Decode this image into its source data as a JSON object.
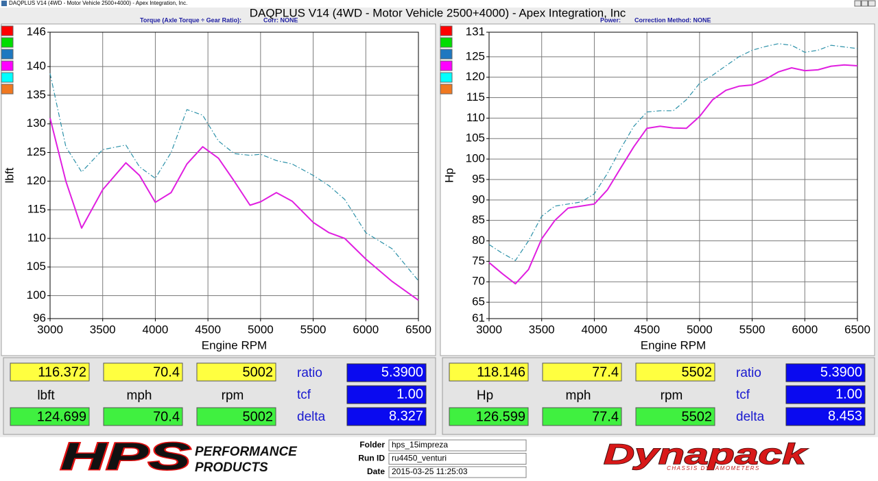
{
  "window": {
    "caption": "DAQPLUS V14 (4WD - Motor Vehicle 2500+4000) - Apex Integration, Inc.",
    "title": "DAQPLUS V14 (4WD - Motor Vehicle 2500+4000) - Apex Integration, Inc"
  },
  "chart_data": [
    {
      "type": "line",
      "header": "Torque (Axle Torque ÷ Gear Ratio):",
      "correction": "Corr: NONE",
      "x_label": "Engine RPM",
      "y_label": "lbft",
      "x": [
        3000,
        3150,
        3300,
        3500,
        3720,
        3850,
        4000,
        4150,
        4300,
        4450,
        4600,
        4750,
        4900,
        5000,
        5150,
        5300,
        5500,
        5650,
        5800,
        6000,
        6250,
        6500
      ],
      "xlim": [
        3000,
        6500
      ],
      "xticks": [
        3000,
        3500,
        4000,
        4500,
        5000,
        5500,
        6000,
        6500
      ],
      "ylim": [
        96,
        146
      ],
      "yticks": [
        96,
        100,
        105,
        110,
        115,
        120,
        125,
        130,
        135,
        140,
        146
      ],
      "grid": true,
      "legend_swatches": [
        "#ff0000",
        "#00dd00",
        "#1e78c0",
        "#ff00ff",
        "#00ffff",
        "#f07820"
      ],
      "series": [
        {
          "color": "#e01ee0",
          "style": "solid",
          "values": [
            131,
            120,
            111.8,
            118.5,
            123.2,
            121,
            116.3,
            118,
            123,
            126,
            124,
            120,
            115.8,
            116.4,
            118,
            116.5,
            112.8,
            111,
            110,
            106.4,
            102.5,
            99.2
          ]
        },
        {
          "color": "#2a90a8",
          "style": "dash-dot",
          "values": [
            138.8,
            126,
            121.6,
            125.5,
            126.3,
            122.5,
            120.5,
            125,
            132.5,
            131.5,
            127,
            124.8,
            124.5,
            124.7,
            123.6,
            123,
            121,
            119.2,
            116.8,
            111,
            108.2,
            102.6
          ]
        }
      ]
    },
    {
      "type": "line",
      "header": "Power:",
      "correction": "Correction Method: NONE",
      "x_label": "Engine RPM",
      "y_label": "Hp",
      "x": [
        3000,
        3125,
        3250,
        3375,
        3500,
        3625,
        3750,
        3875,
        4000,
        4125,
        4250,
        4375,
        4500,
        4625,
        4750,
        4875,
        5000,
        5125,
        5250,
        5375,
        5500,
        5625,
        5750,
        5875,
        6000,
        6125,
        6250,
        6375,
        6500
      ],
      "xlim": [
        3000,
        6500
      ],
      "xticks": [
        3000,
        3500,
        4000,
        4500,
        5000,
        5500,
        6000,
        6500
      ],
      "ylim": [
        61,
        131
      ],
      "yticks": [
        61,
        65,
        70,
        75,
        80,
        85,
        90,
        95,
        100,
        105,
        110,
        115,
        120,
        125,
        131
      ],
      "grid": true,
      "legend_swatches": [
        "#ff0000",
        "#00dd00",
        "#1e78c0",
        "#ff00ff",
        "#00ffff",
        "#f07820"
      ],
      "series": [
        {
          "color": "#e01ee0",
          "style": "solid",
          "values": [
            74.7,
            72,
            69.5,
            73,
            80.5,
            85,
            88,
            88.5,
            89,
            92.5,
            97.8,
            103,
            107.5,
            108,
            107.6,
            107.5,
            110.4,
            114.5,
            116.8,
            117.8,
            118.1,
            119.5,
            121.3,
            122.3,
            121.6,
            121.8,
            122.7,
            123,
            122.8
          ]
        },
        {
          "color": "#2a90a8",
          "style": "dash-dot",
          "values": [
            79.1,
            77,
            75.2,
            80,
            86,
            88.5,
            89,
            89.5,
            91.5,
            96.5,
            102.5,
            108,
            111.5,
            111.8,
            111.8,
            114.5,
            118.5,
            120.5,
            122.8,
            125,
            126.6,
            127.5,
            128.2,
            127.8,
            126.1,
            126.6,
            127.8,
            127.4,
            127
          ]
        }
      ]
    }
  ],
  "readouts": [
    {
      "primary": [
        "116.372",
        "70.4",
        "5002"
      ],
      "units": [
        "lbft",
        "mph",
        "rpm"
      ],
      "secondary": [
        "124.699",
        "70.4",
        "5002"
      ],
      "params": [
        {
          "label": "ratio",
          "value": "5.3900"
        },
        {
          "label": "tcf",
          "value": "1.00"
        },
        {
          "label": "delta",
          "value": "8.327"
        }
      ]
    },
    {
      "primary": [
        "118.146",
        "77.4",
        "5502"
      ],
      "units": [
        "Hp",
        "mph",
        "rpm"
      ],
      "secondary": [
        "126.599",
        "77.4",
        "5502"
      ],
      "params": [
        {
          "label": "ratio",
          "value": "5.3900"
        },
        {
          "label": "tcf",
          "value": "1.00"
        },
        {
          "label": "delta",
          "value": "8.453"
        }
      ]
    }
  ],
  "footer": {
    "brand": "HPS",
    "brand_tagline": [
      "PERFORMANCE",
      "PRODUCTS"
    ],
    "fields": [
      {
        "label": "Folder",
        "value": "hps_15impreza"
      },
      {
        "label": "Run ID",
        "value": "ru4450_venturi"
      },
      {
        "label": "Date",
        "value": "2015-03-25 11:25:03"
      }
    ],
    "sponsor": "Dynapack",
    "sponsor_tagline": "CHASSIS DYNAMOMETERS"
  }
}
